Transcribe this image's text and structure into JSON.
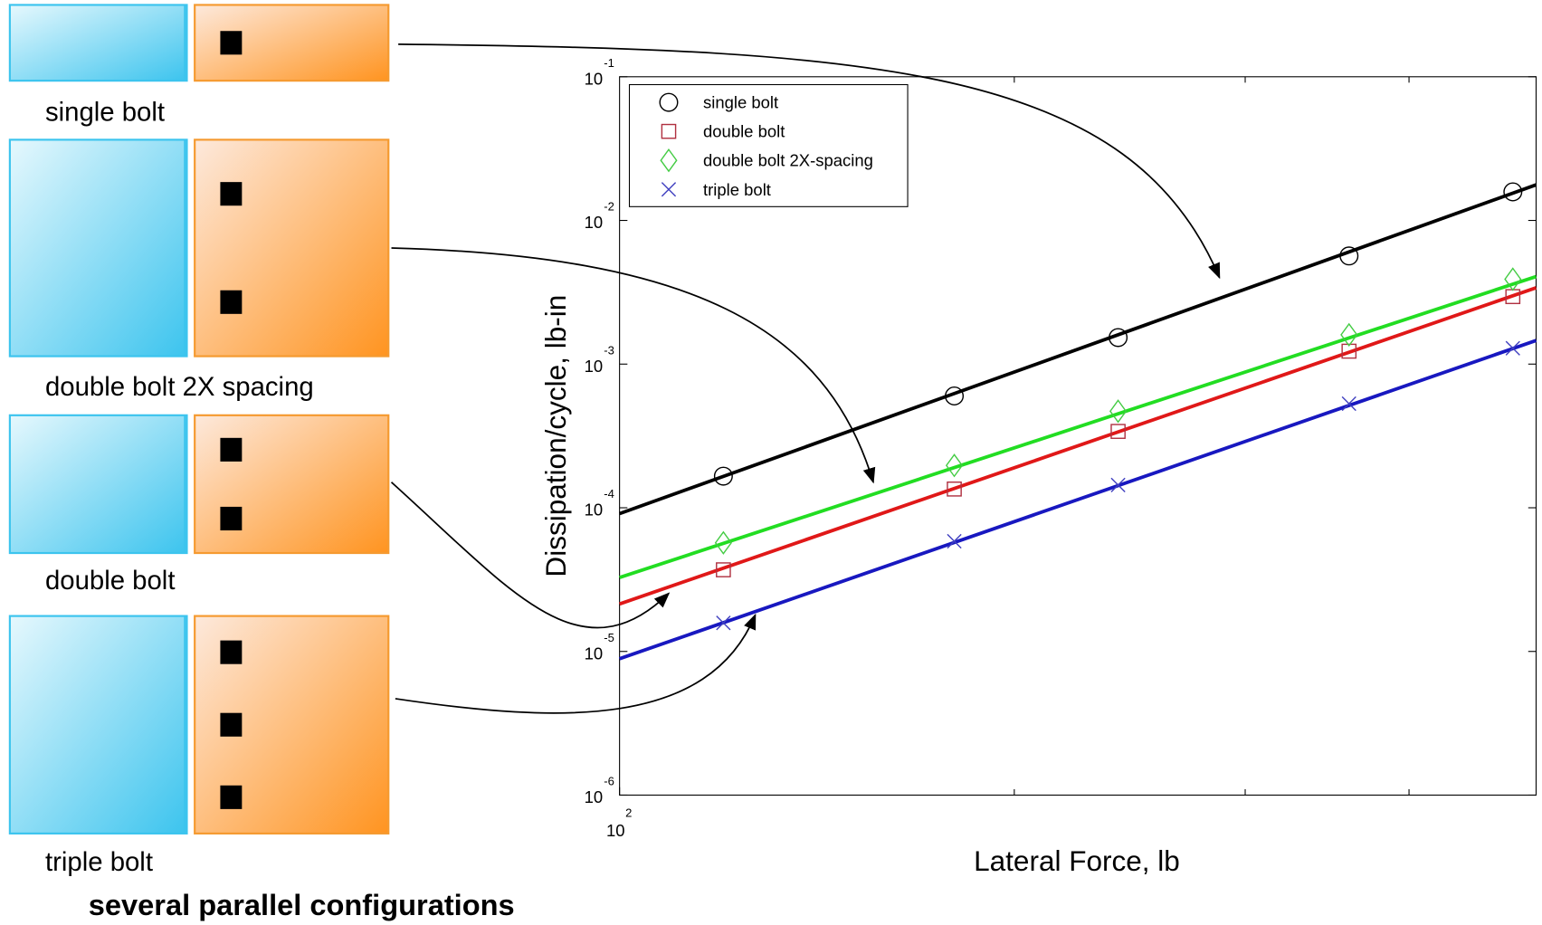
{
  "configurations": [
    {
      "label": "single bolt",
      "bolts": 1
    },
    {
      "label": "double bolt 2X spacing",
      "bolts": 2
    },
    {
      "label": "double bolt",
      "bolts": 2
    },
    {
      "label": "triple bolt",
      "bolts": 3
    }
  ],
  "caption": "several parallel configurations",
  "chart_data": {
    "type": "scatter",
    "x_label": "Lateral Force, lb",
    "y_label": "Dissipation/cycle, lb-in",
    "log_x": true,
    "log_y": true,
    "legend": "upper left",
    "xlim": [
      100,
      500
    ],
    "ylim": [
      1e-06,
      0.1
    ],
    "xticks": [
      {
        "value": 100,
        "label": "10",
        "exponent": "2"
      }
    ],
    "xminorticks": [
      200,
      300,
      400
    ],
    "yticks": [
      {
        "value": 1e-06,
        "label": "10",
        "exponent": "-6"
      },
      {
        "value": 1e-05,
        "label": "10",
        "exponent": "-5"
      },
      {
        "value": 0.0001,
        "label": "10",
        "exponent": "-4"
      },
      {
        "value": 0.001,
        "label": "10",
        "exponent": "-3"
      },
      {
        "value": 0.01,
        "label": "10",
        "exponent": "-2"
      },
      {
        "value": 0.1,
        "label": "10",
        "exponent": "-1"
      }
    ],
    "x": [
      120,
      180,
      240,
      360,
      480
    ],
    "fit_x": [
      100,
      500
    ],
    "series": [
      {
        "name": "single bolt",
        "color": "#000000",
        "marker": "circle",
        "values": [
          0.000166,
          0.0006,
          0.00153,
          0.00566,
          0.0158
        ],
        "fit_values": [
          9.1e-05,
          0.0177
        ]
      },
      {
        "name": "double bolt",
        "color": "#e01818",
        "marker_color": "#b03040",
        "marker": "square",
        "values": [
          3.7e-05,
          0.000135,
          0.00034,
          0.00123,
          0.00295
        ],
        "fit_values": [
          2.14e-05,
          0.0034
        ]
      },
      {
        "name": "double bolt 2X-spacing",
        "color": "#22dd22",
        "marker_color": "#44cc44",
        "marker": "diamond",
        "values": [
          5.7e-05,
          0.000197,
          0.00047,
          0.0016,
          0.0039
        ],
        "fit_values": [
          3.27e-05,
          0.00407
        ]
      },
      {
        "name": "triple bolt",
        "color": "#1818c0",
        "marker_color": "#4040c0",
        "marker": "x",
        "values": [
          1.58e-05,
          5.85e-05,
          0.000144,
          0.00053,
          0.00129
        ],
        "fit_values": [
          8.9e-06,
          0.00146
        ]
      }
    ]
  }
}
